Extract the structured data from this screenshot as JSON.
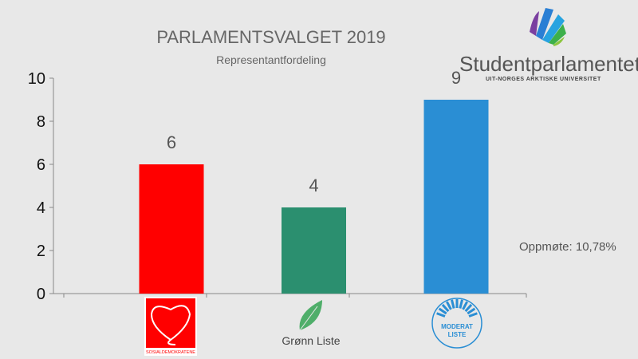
{
  "chart_data": {
    "type": "bar",
    "title": "PARLAMENTSVALGET 2019",
    "subtitle": "Representantfordeling",
    "categories": [
      "Sosialdemokratene",
      "Grønn Liste",
      "Moderat Liste"
    ],
    "values": [
      6,
      4,
      9
    ],
    "colors": [
      "#ff0000",
      "#2b8f6f",
      "#2a8ed4"
    ],
    "yticks": [
      "0",
      "2",
      "4",
      "6",
      "8",
      "10"
    ],
    "ylim": [
      0,
      10
    ],
    "xlabel": "",
    "ylabel": "",
    "grid": false
  },
  "annotation": "Oppmøte: 10,78%",
  "logo": {
    "name": "Studentparlamentet",
    "sub": "UIT-NORGES ARKTISKE UNIVERSITET"
  },
  "party_logos": {
    "sd": "SOSIALDEMOKRATENE",
    "gl": "Grønn Liste",
    "ml1": "MODERAT",
    "ml2": "LISTE"
  }
}
